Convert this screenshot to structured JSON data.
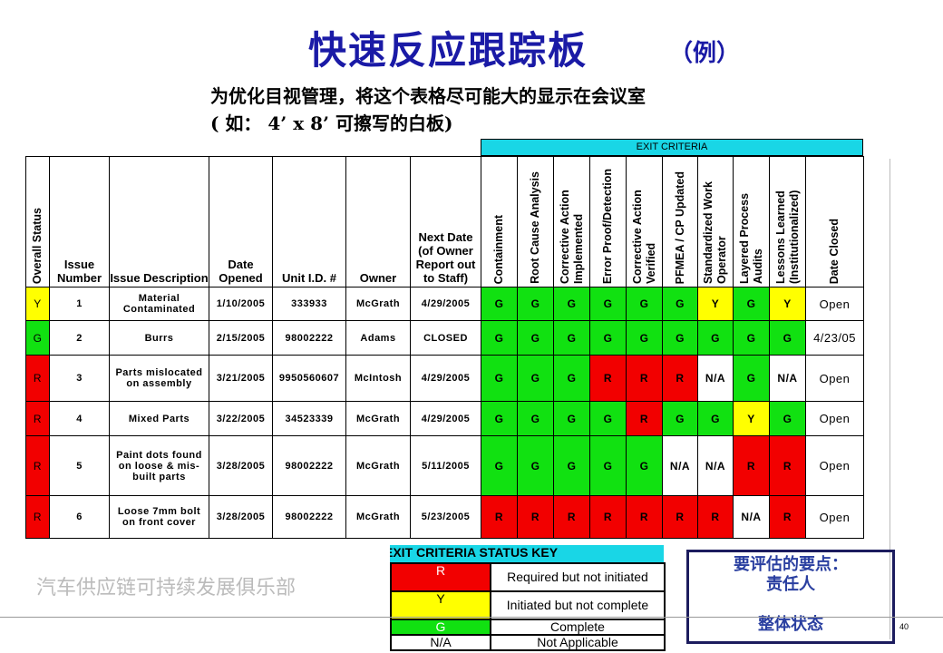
{
  "title": "快速反应跟踪板",
  "example": "（例）",
  "subtitle": [
    "为优化目视管理，将这个表格尽可能大的显示在会议室",
    "( 如： 4’ x 8’ 可擦写的白板)"
  ],
  "exit_criteria_label": "EXIT CRITERIA",
  "headers": [
    "Overall Status",
    "Issue Number",
    "Issue Description",
    "Date Opened",
    "Unit I.D. #",
    "Owner",
    "Next Date (of Owner Report out to Staff)",
    "Containment",
    "Root Cause Analysis",
    "Corrective Action Implemented",
    "Error Proof/Detection",
    "Corrective Action Verified",
    "PFMEA / CP Updated",
    "Standardized Work Operator",
    "Layered Process Audits",
    "Lessons Learned (Institutionalized)",
    "Date Closed"
  ],
  "rows": [
    {
      "status": "Y",
      "num": "1",
      "desc": "Material Contaminated",
      "opened": "1/10/2005",
      "unit": "333933",
      "owner": "McGrath",
      "next": "4/29/2005",
      "exit": [
        "G",
        "G",
        "G",
        "G",
        "G",
        "G",
        "Y",
        "G",
        "Y"
      ],
      "closed": "Open"
    },
    {
      "status": "G",
      "num": "2",
      "desc": "Burrs",
      "opened": "2/15/2005",
      "unit": "98002222",
      "owner": "Adams",
      "next": "CLOSED",
      "exit": [
        "G",
        "G",
        "G",
        "G",
        "G",
        "G",
        "G",
        "G",
        "G"
      ],
      "closed": "4/23/05"
    },
    {
      "status": "R",
      "num": "3",
      "desc": "Parts mislocated on assembly",
      "opened": "3/21/2005",
      "unit": "9950560607",
      "owner": "McIntosh",
      "next": "4/29/2005",
      "exit": [
        "G",
        "G",
        "G",
        "R",
        "R",
        "R",
        "N/A",
        "G",
        "N/A"
      ],
      "closed": "Open"
    },
    {
      "status": "R",
      "num": "4",
      "desc": "Mixed Parts",
      "opened": "3/22/2005",
      "unit": "34523339",
      "owner": "McGrath",
      "next": "4/29/2005",
      "exit": [
        "G",
        "G",
        "G",
        "G",
        "R",
        "G",
        "G",
        "Y",
        "G"
      ],
      "closed": "Open"
    },
    {
      "status": "R",
      "num": "5",
      "desc": "Paint dots found on loose & mis-built parts",
      "opened": "3/28/2005",
      "unit": "98002222",
      "owner": "McGrath",
      "next": "5/11/2005",
      "exit": [
        "G",
        "G",
        "G",
        "G",
        "G",
        "N/A",
        "N/A",
        "R",
        "R"
      ],
      "closed": "Open"
    },
    {
      "status": "R",
      "num": "6",
      "desc": "Loose 7mm bolt on front cover",
      "opened": "3/28/2005",
      "unit": "98002222",
      "owner": "McGrath",
      "next": "5/23/2005",
      "exit": [
        "R",
        "R",
        "R",
        "R",
        "R",
        "R",
        "R",
        "N/A",
        "R"
      ],
      "closed": "Open"
    }
  ],
  "key": {
    "title": "EXIT CRITERIA STATUS KEY",
    "items": [
      {
        "code": "R",
        "desc": "Required but not initiated"
      },
      {
        "code": "Y",
        "desc": "Initiated but not complete"
      },
      {
        "code": "G",
        "desc": "Complete"
      },
      {
        "code": "N/A",
        "desc": "Not Applicable"
      }
    ]
  },
  "points": {
    "title": "要评估的要点：",
    "items": [
      "责任人",
      "整体状态"
    ]
  },
  "watermark": "汽车供应链可持续发展俱乐部",
  "page_number": "40",
  "colors": {
    "R": "#f20000",
    "Y": "#ffff00",
    "G": "#11e111",
    "title": "#1a1aa6",
    "banner": "#19d6e6"
  }
}
